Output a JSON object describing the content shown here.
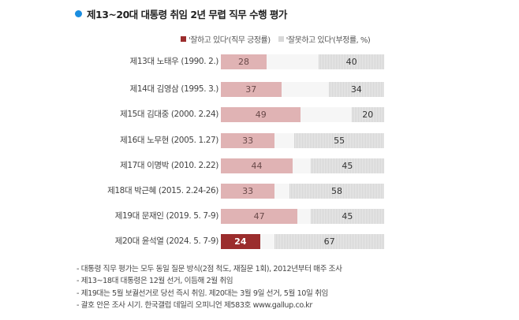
{
  "title": "제13~20대 대통령 취임 2년 무렵 직무 수행 평가",
  "legend": {
    "positive": "'잘하고 있다'(직무 긍정률)",
    "negative": "'잘못하고 있다'(부정률, %)"
  },
  "colors": {
    "title_dot": "#1a8de0",
    "positive": "#e0b3b4",
    "positive_highlight": "#9b2d2d",
    "negative": "#d8d8d8",
    "track": "#f6f6f6"
  },
  "rows": [
    {
      "label": "제13대 노태우 (1990. 2.)",
      "positive": "28",
      "negative": "40"
    },
    {
      "label": "제14대 김영삼 (1995. 3.)",
      "positive": "37",
      "negative": "34"
    },
    {
      "label": "제15대 김대중 (2000. 2.24)",
      "positive": "49",
      "negative": "20"
    },
    {
      "label": "제16대 노무현 (2005. 1.27)",
      "positive": "33",
      "negative": "55"
    },
    {
      "label": "제17대 이명박 (2010. 2.22)",
      "positive": "44",
      "negative": "45"
    },
    {
      "label": "제18대 박근혜 (2015. 2.24-26)",
      "positive": "33",
      "negative": "58"
    },
    {
      "label": "제19대 문재인 (2019. 5. 7-9)",
      "positive": "47",
      "negative": "45"
    },
    {
      "label": "제20대 윤석열 (2024. 5. 7-9)",
      "positive": "24",
      "negative": "67"
    }
  ],
  "notes": [
    "- 대통령 직무 평가는 모두 동일 질문 방식(2점 척도, 재질문 1회), 2012년부터 매주 조사",
    "- 제13~18대 대통령은 12월 선거, 이듬해 2월 취임",
    "- 제19대는 5월 보궐선거로 당선 즉시 취임. 제20대는 3월 9일 선거, 5월 10일 취임",
    "- 괄호 안은 조사 시기. 한국갤럽 데일리 오피니언 제583호 www.gallup.co.kr"
  ],
  "chart_data": {
    "type": "bar",
    "orientation": "horizontal",
    "title": "제13~20대 대통령 취임 2년 무렵 직무 수행 평가",
    "categories": [
      "제13대 노태우 (1990. 2.)",
      "제14대 김영삼 (1995. 3.)",
      "제15대 김대중 (2000. 2.24)",
      "제16대 노무현 (2005. 1.27)",
      "제17대 이명박 (2010. 2.22)",
      "제18대 박근혜 (2015. 2.24-26)",
      "제19대 문재인 (2019. 5. 7-9)",
      "제20대 윤석열 (2024. 5. 7-9)"
    ],
    "series": [
      {
        "name": "'잘하고 있다'(직무 긍정률)",
        "values": [
          28,
          37,
          49,
          33,
          44,
          33,
          47,
          24
        ],
        "align": "left",
        "color": "#e0b3b4",
        "highlight_index": 7,
        "highlight_color": "#9b2d2d"
      },
      {
        "name": "'잘못하고 있다'(부정률, %)",
        "values": [
          40,
          34,
          20,
          55,
          45,
          58,
          45,
          67
        ],
        "align": "right",
        "color": "#d8d8d8"
      }
    ],
    "xlabel": "",
    "ylabel": "",
    "xlim": [
      0,
      100
    ],
    "unit": "%",
    "grid": false,
    "legend_position": "top-right"
  }
}
